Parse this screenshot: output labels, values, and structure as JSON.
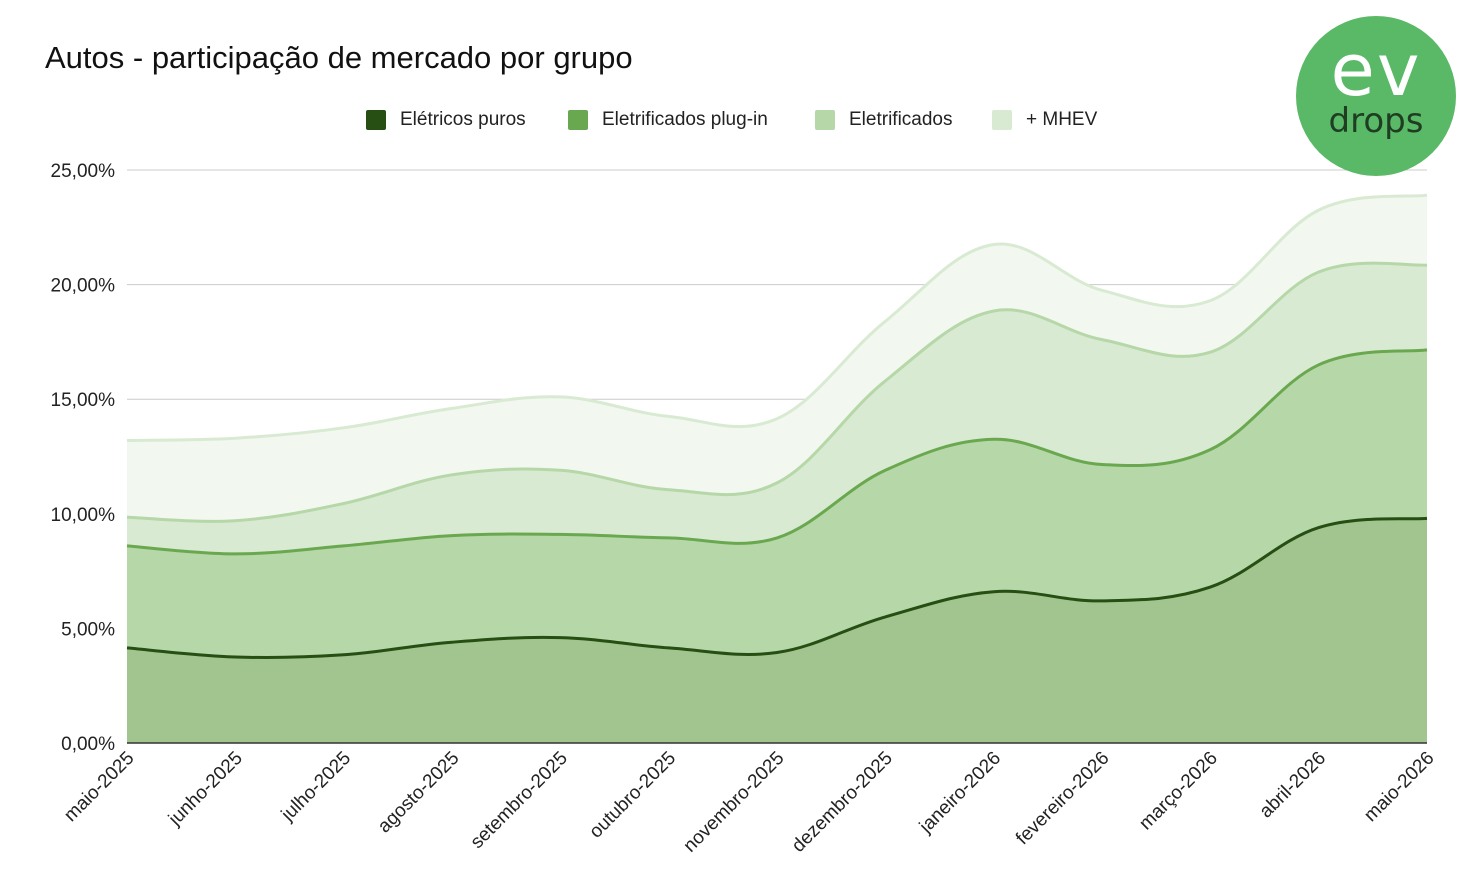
{
  "chart_data": {
    "type": "area",
    "title": "Autos - participação de mercado por grupo",
    "xlabel": "",
    "ylabel": "",
    "ylim": [
      0,
      25
    ],
    "y_ticks": [
      "0,00%",
      "5,00%",
      "10,00%",
      "15,00%",
      "20,00%",
      "25,00%"
    ],
    "y_tick_values": [
      0,
      5,
      10,
      15,
      20,
      25
    ],
    "grid": true,
    "legend_position": "top",
    "categories": [
      "maio-2025",
      "junho-2025",
      "julho-2025",
      "agosto-2025",
      "setembro-2025",
      "outubro-2025",
      "novembro-2025",
      "dezembro-2025",
      "janeiro-2026",
      "fevereiro-2026",
      "março-2026",
      "abril-2026",
      "maio-2026"
    ],
    "series": [
      {
        "name": "Elétricos puros",
        "color": "#274e13",
        "fill": "#a2c48e",
        "values": [
          4.15,
          3.75,
          3.85,
          4.4,
          4.6,
          4.15,
          3.95,
          5.5,
          6.6,
          6.2,
          6.8,
          9.4,
          9.8
        ]
      },
      {
        "name": "Eletrificados plug-in",
        "color": "#6aa84f",
        "fill": "#b6d7a8",
        "values": [
          8.6,
          8.25,
          8.6,
          9.05,
          9.1,
          8.95,
          8.95,
          11.9,
          13.25,
          12.15,
          12.8,
          16.5,
          17.15
        ]
      },
      {
        "name": "Eletrificados",
        "color": "#b6d7a8",
        "fill": "#d9ead3",
        "values": [
          9.85,
          9.7,
          10.45,
          11.7,
          11.9,
          11.05,
          11.35,
          15.8,
          18.85,
          17.6,
          17.05,
          20.55,
          20.85
        ]
      },
      {
        "name": "+ MHEV",
        "color": "#d9ead3",
        "fill": "#f2f7ef",
        "values": [
          13.2,
          13.3,
          13.75,
          14.6,
          15.1,
          14.25,
          14.15,
          18.4,
          21.75,
          19.75,
          19.3,
          23.25,
          23.9
        ]
      }
    ]
  },
  "logo": {
    "line1": "ev",
    "line2": "drops"
  }
}
